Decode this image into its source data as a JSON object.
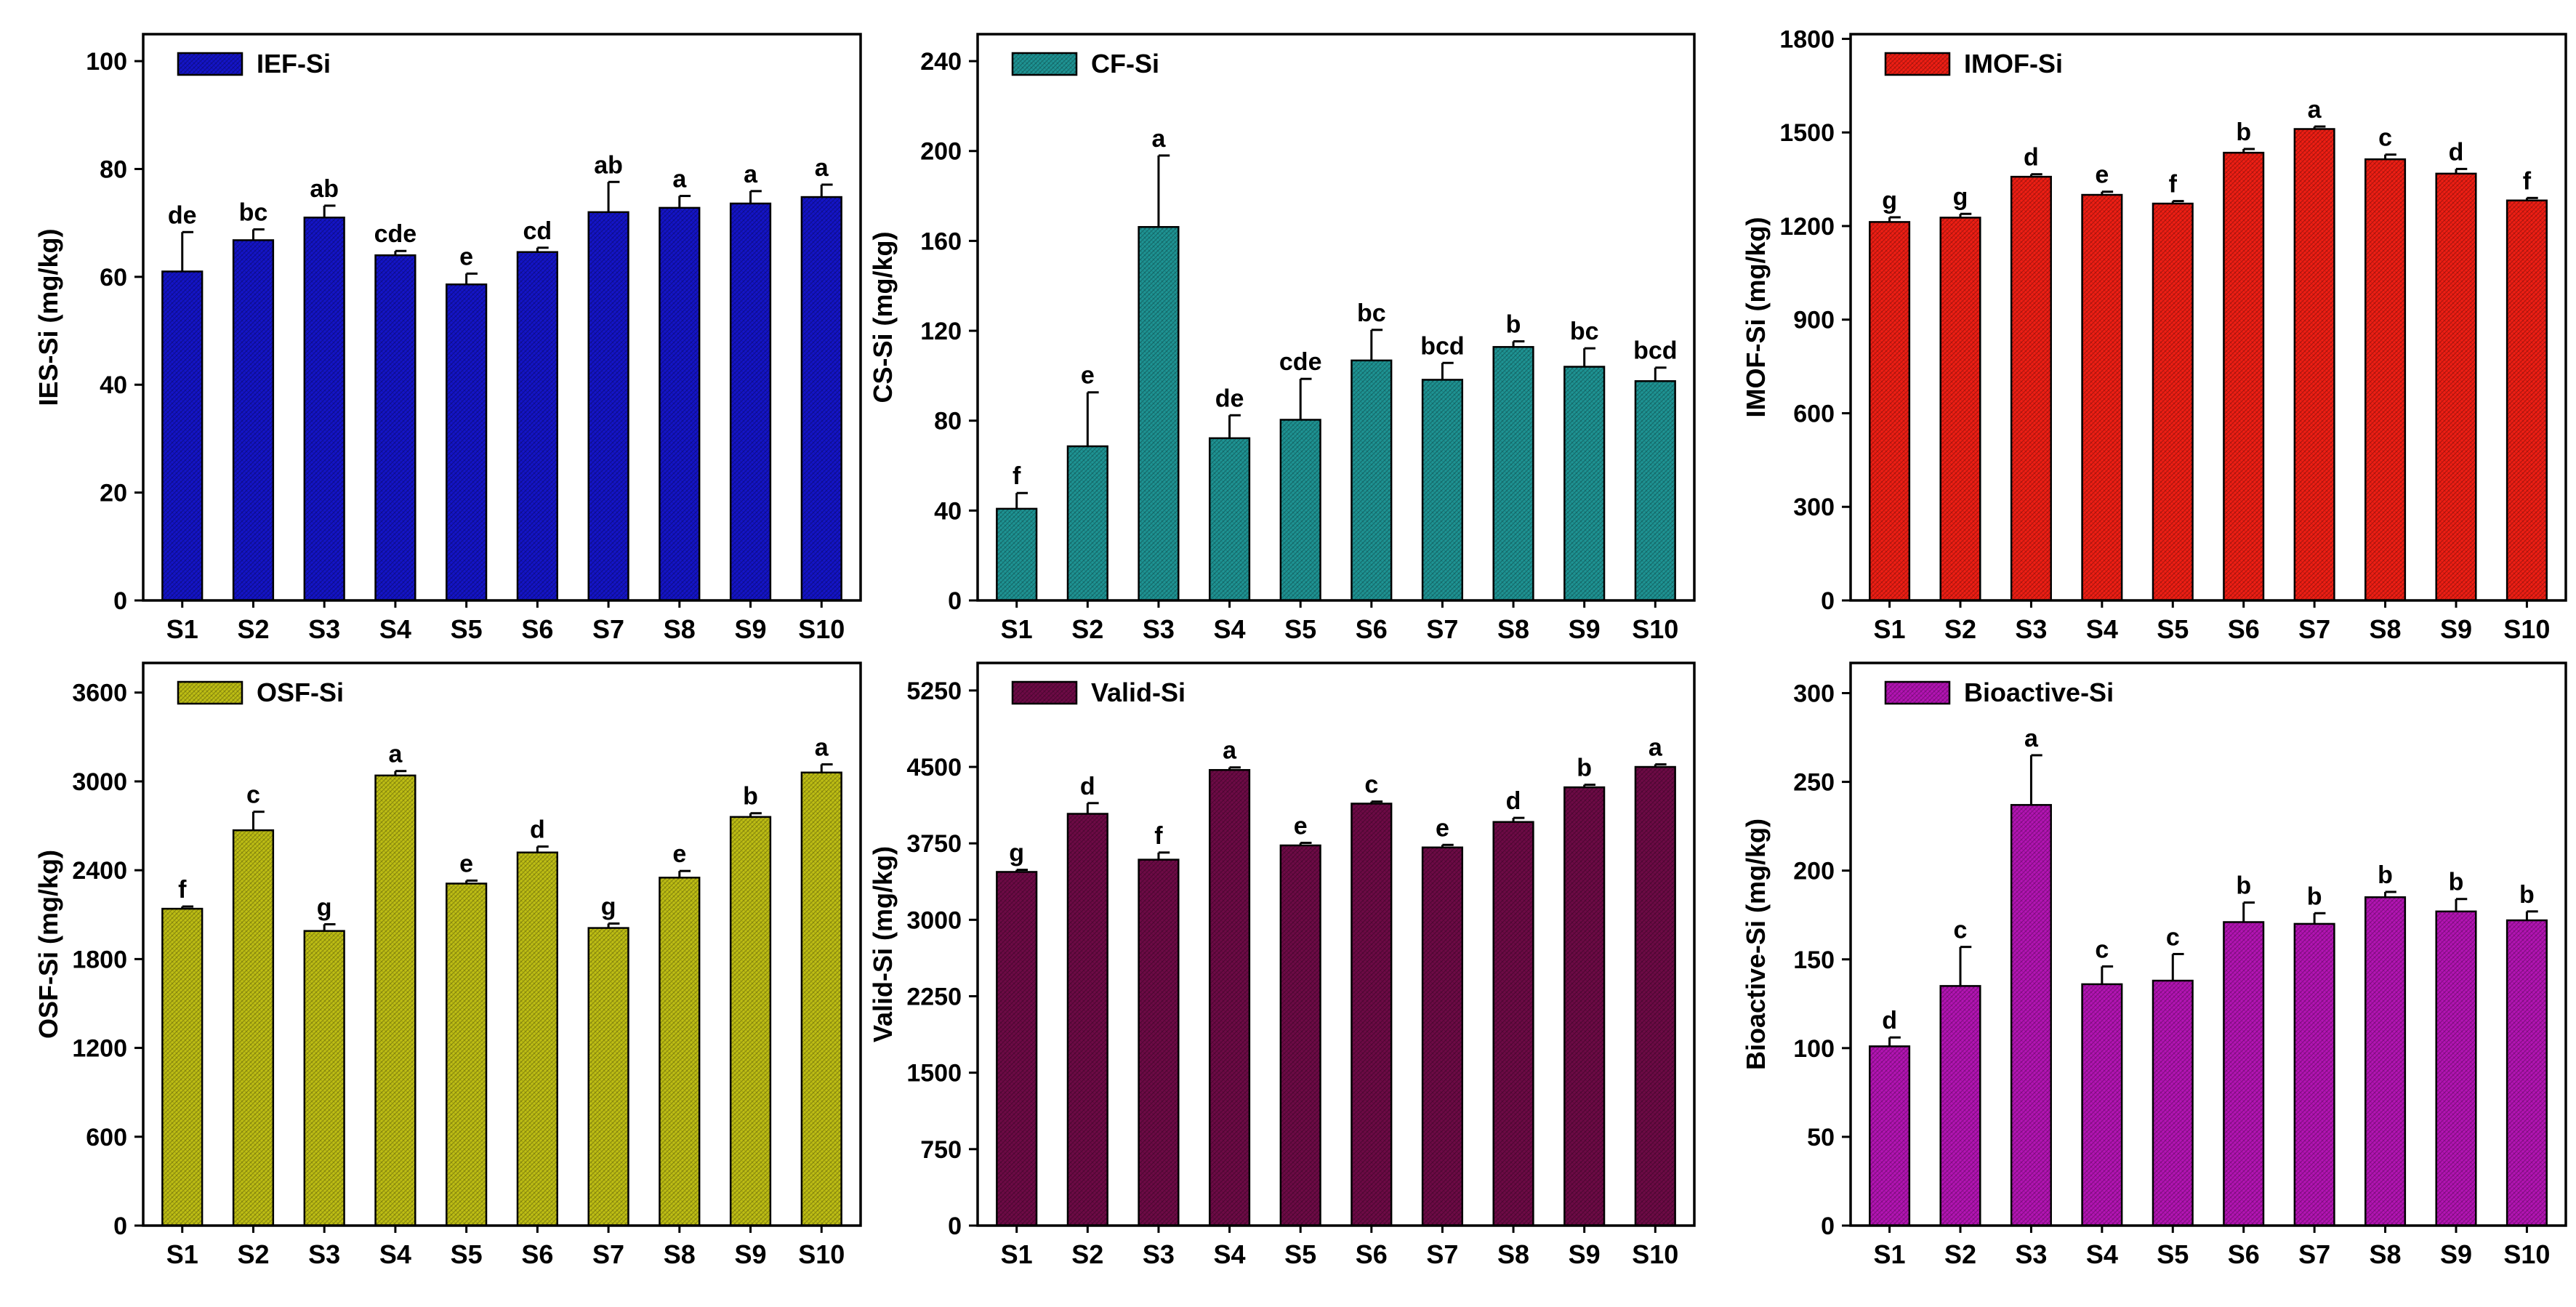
{
  "chart_data": [
    {
      "type": "bar",
      "ylabel": "IES-Si (mg/kg)",
      "legend": "IEF-Si",
      "color": "#1414c8",
      "legend_position": "top-left",
      "grid": false,
      "categories": [
        "S1",
        "S2",
        "S3",
        "S4",
        "S5",
        "S6",
        "S7",
        "S8",
        "S9",
        "S10"
      ],
      "values": [
        61.0,
        66.8,
        71.0,
        64.0,
        58.6,
        64.6,
        72.0,
        72.8,
        73.6,
        74.8
      ],
      "errors": [
        7.3,
        2.0,
        2.2,
        0.8,
        2.0,
        0.8,
        5.6,
        2.2,
        2.3,
        2.3
      ],
      "letters": [
        "de",
        "bc",
        "ab",
        "cde",
        "e",
        "cd",
        "ab",
        "a",
        "a",
        "a"
      ],
      "ylim": [
        0,
        105
      ],
      "yticks": [
        0,
        20,
        40,
        60,
        80,
        100
      ]
    },
    {
      "type": "bar",
      "ylabel": "CS-Si (mg/kg)",
      "legend": "CF-Si",
      "color": "#1e9494",
      "legend_position": "top-left",
      "grid": false,
      "categories": [
        "S1",
        "S2",
        "S3",
        "S4",
        "S5",
        "S6",
        "S7",
        "S8",
        "S9",
        "S10"
      ],
      "values": [
        40.8,
        68.6,
        166.2,
        72.2,
        80.4,
        106.8,
        98.2,
        112.8,
        104.0,
        97.6
      ],
      "errors": [
        7.0,
        24.0,
        31.8,
        10.2,
        18.2,
        13.6,
        7.5,
        2.5,
        8.2,
        6.0
      ],
      "letters": [
        "f",
        "e",
        "a",
        "de",
        "cde",
        "bc",
        "bcd",
        "b",
        "bc",
        "bcd"
      ],
      "ylim": [
        0,
        252
      ],
      "yticks": [
        0,
        40,
        80,
        120,
        160,
        200,
        240
      ]
    },
    {
      "type": "bar",
      "ylabel": "IMOF-Si (mg/kg)",
      "legend": "IMOF-Si",
      "color": "#f01e14",
      "legend_position": "top-left",
      "grid": false,
      "categories": [
        "S1",
        "S2",
        "S3",
        "S4",
        "S5",
        "S6",
        "S7",
        "S8",
        "S9",
        "S10"
      ],
      "values": [
        1213,
        1227,
        1358,
        1300,
        1272,
        1435,
        1511,
        1414,
        1368,
        1282
      ],
      "errors": [
        15,
        12,
        8,
        10,
        8,
        12,
        8,
        15,
        15,
        8
      ],
      "letters": [
        "g",
        "g",
        "d",
        "e",
        "f",
        "b",
        "a",
        "c",
        "d",
        "f"
      ],
      "ylim": [
        0,
        1815
      ],
      "yticks": [
        0,
        300,
        600,
        900,
        1200,
        1500,
        1800
      ]
    },
    {
      "type": "bar",
      "ylabel": "OSF-Si (mg/kg)",
      "legend": "OSF-Si",
      "color": "#bebe14",
      "legend_position": "top-left",
      "grid": false,
      "categories": [
        "S1",
        "S2",
        "S3",
        "S4",
        "S5",
        "S6",
        "S7",
        "S8",
        "S9",
        "S10"
      ],
      "values": [
        2140,
        2670,
        1990,
        3040,
        2310,
        2520,
        2010,
        2350,
        2760,
        3060
      ],
      "errors": [
        15,
        125,
        45,
        30,
        20,
        40,
        30,
        45,
        25,
        55
      ],
      "letters": [
        "f",
        "c",
        "g",
        "a",
        "e",
        "d",
        "g",
        "e",
        "b",
        "a"
      ],
      "ylim": [
        0,
        3800
      ],
      "yticks": [
        0,
        600,
        1200,
        1800,
        2400,
        3000,
        3600
      ]
    },
    {
      "type": "bar",
      "ylabel": "Valid-Si (mg/kg)",
      "legend": "Valid-Si",
      "color": "#6e0a46",
      "legend_position": "top-left",
      "grid": false,
      "categories": [
        "S1",
        "S2",
        "S3",
        "S4",
        "S5",
        "S6",
        "S7",
        "S8",
        "S9",
        "S10"
      ],
      "values": [
        3470,
        4040,
        3590,
        4470,
        3730,
        4140,
        3710,
        3960,
        4300,
        4500
      ],
      "errors": [
        20,
        105,
        70,
        25,
        25,
        20,
        25,
        40,
        25,
        25
      ],
      "letters": [
        "g",
        "d",
        "f",
        "a",
        "e",
        "c",
        "e",
        "d",
        "b",
        "a"
      ],
      "ylim": [
        0,
        5520
      ],
      "yticks": [
        0,
        750,
        1500,
        2250,
        3000,
        3750,
        4500,
        5250
      ]
    },
    {
      "type": "bar",
      "ylabel": "Bioactive-Si (mg/kg)",
      "legend": "Bioactive-Si",
      "color": "#b414b4",
      "legend_position": "top-left",
      "grid": false,
      "categories": [
        "S1",
        "S2",
        "S3",
        "S4",
        "S5",
        "S6",
        "S7",
        "S8",
        "S9",
        "S10"
      ],
      "values": [
        101,
        135,
        237,
        136,
        138,
        171,
        170,
        185,
        177,
        172
      ],
      "errors": [
        5,
        22,
        28,
        10,
        15,
        11,
        6,
        3,
        7,
        5
      ],
      "letters": [
        "d",
        "c",
        "a",
        "c",
        "c",
        "b",
        "b",
        "b",
        "b",
        "b"
      ],
      "ylim": [
        0,
        317
      ],
      "yticks": [
        0,
        50,
        100,
        150,
        200,
        250,
        300
      ]
    }
  ]
}
